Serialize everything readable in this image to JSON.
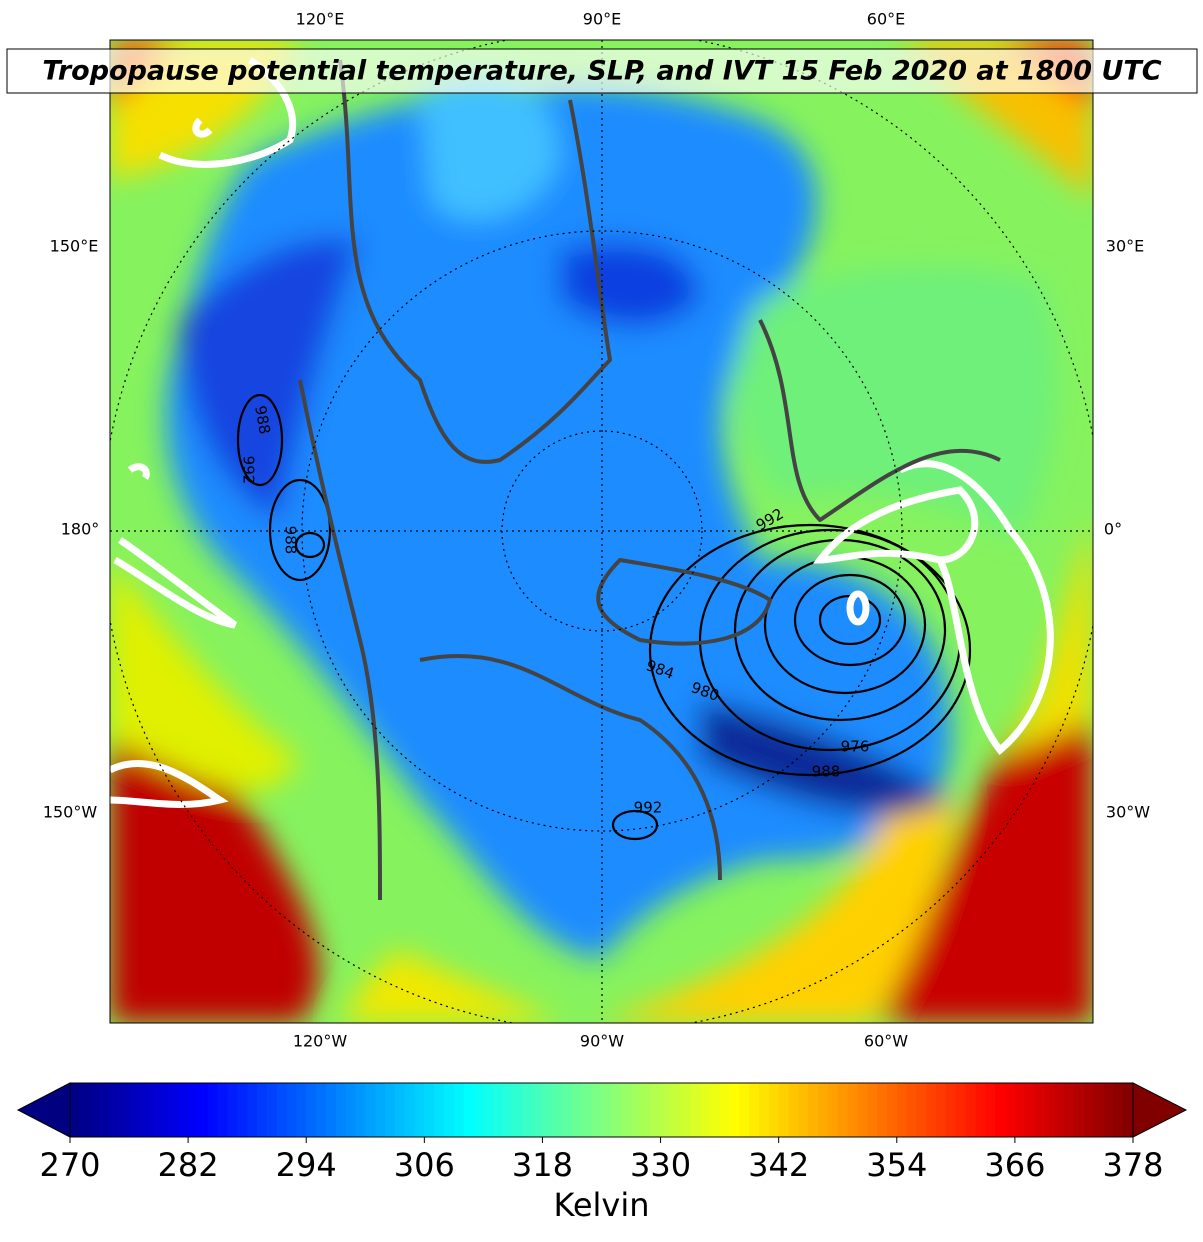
{
  "title": "Tropopause potential temperature, SLP, and IVT 15 Feb 2020 at 1800 UTC",
  "map_labels": {
    "top": [
      "120°E",
      "90°E",
      "60°E"
    ],
    "bottom": [
      "120°W",
      "90°W",
      "60°W"
    ],
    "left": [
      "150°E",
      "180°",
      "150°W"
    ],
    "right": [
      "30°E",
      "0°",
      "30°W"
    ]
  },
  "slp_labels": [
    988,
    992,
    988,
    992,
    984,
    980,
    976,
    988,
    992
  ],
  "colorbar": {
    "colormap": "jet",
    "clim": [
      270,
      378
    ],
    "ticks": [
      270,
      282,
      294,
      306,
      318,
      330,
      342,
      354,
      366,
      378
    ],
    "label": "Kelvin",
    "extend": "both"
  }
}
